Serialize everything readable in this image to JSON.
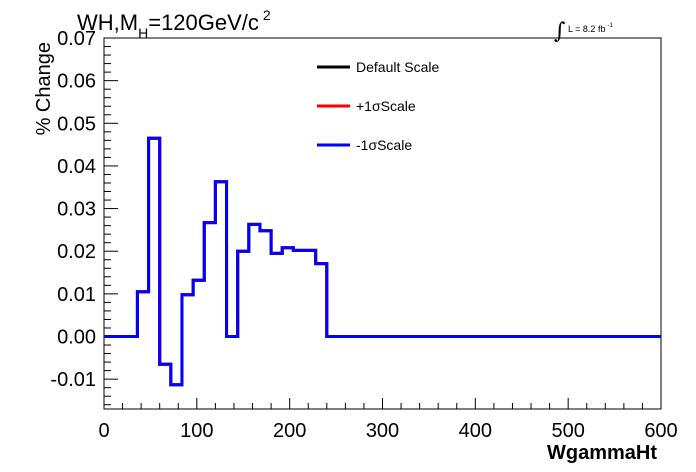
{
  "chart_data": {
    "type": "line",
    "title": "WH,M",
    "title_sub": "H",
    "title_rest": "=120GeV/c",
    "title_sup": "2",
    "lumi_label": "L = 8.2 fb",
    "lumi_sup": "-1",
    "xlabel": "WgammaHt",
    "ylabel": "% Change",
    "xlim": [
      0,
      600
    ],
    "ylim": [
      -0.017,
      0.07
    ],
    "x_ticks": [
      "0",
      "100",
      "200",
      "300",
      "400",
      "500",
      "600"
    ],
    "x_tick_values": [
      0,
      100,
      200,
      300,
      400,
      500,
      600
    ],
    "y_ticks": [
      "-0.01",
      "0.00",
      "0.01",
      "0.02",
      "0.03",
      "0.04",
      "0.05",
      "0.06",
      "0.07"
    ],
    "y_tick_values": [
      -0.01,
      0,
      0.01,
      0.02,
      0.03,
      0.04,
      0.05,
      0.06,
      0.07
    ],
    "bin_edges": [
      0,
      36,
      48,
      60,
      72,
      84,
      96,
      108,
      120,
      132,
      144,
      156,
      168,
      180,
      192,
      204,
      216,
      228,
      240,
      252,
      600
    ],
    "legend_position": "top-right",
    "series": [
      {
        "name": "Default Scale",
        "color": "#000000",
        "values": [
          0,
          0.0105,
          0.0465,
          -0.0065,
          -0.0113,
          0.0098,
          0.0132,
          0.0267,
          0.0363,
          0.0,
          0.02,
          0.0263,
          0.0248,
          0.0195,
          0.0208,
          0.0202,
          0.0202,
          0.0171,
          0,
          0
        ]
      },
      {
        "name": "+1σScale",
        "color": "#ff0000",
        "values": [
          0,
          0.0105,
          0.0465,
          -0.0065,
          -0.0113,
          0.0098,
          0.0132,
          0.0267,
          0.0363,
          0.0,
          0.02,
          0.0263,
          0.0248,
          0.0195,
          0.0208,
          0.0202,
          0.0202,
          0.0171,
          0,
          0
        ]
      },
      {
        "name": "-1σScale",
        "color": "#0000ff",
        "values": [
          0,
          0.0105,
          0.0465,
          -0.0065,
          -0.0113,
          0.0098,
          0.0132,
          0.0267,
          0.0363,
          0.0,
          0.02,
          0.0263,
          0.0248,
          0.0195,
          0.0208,
          0.0202,
          0.0202,
          0.0171,
          0,
          0
        ]
      }
    ]
  }
}
